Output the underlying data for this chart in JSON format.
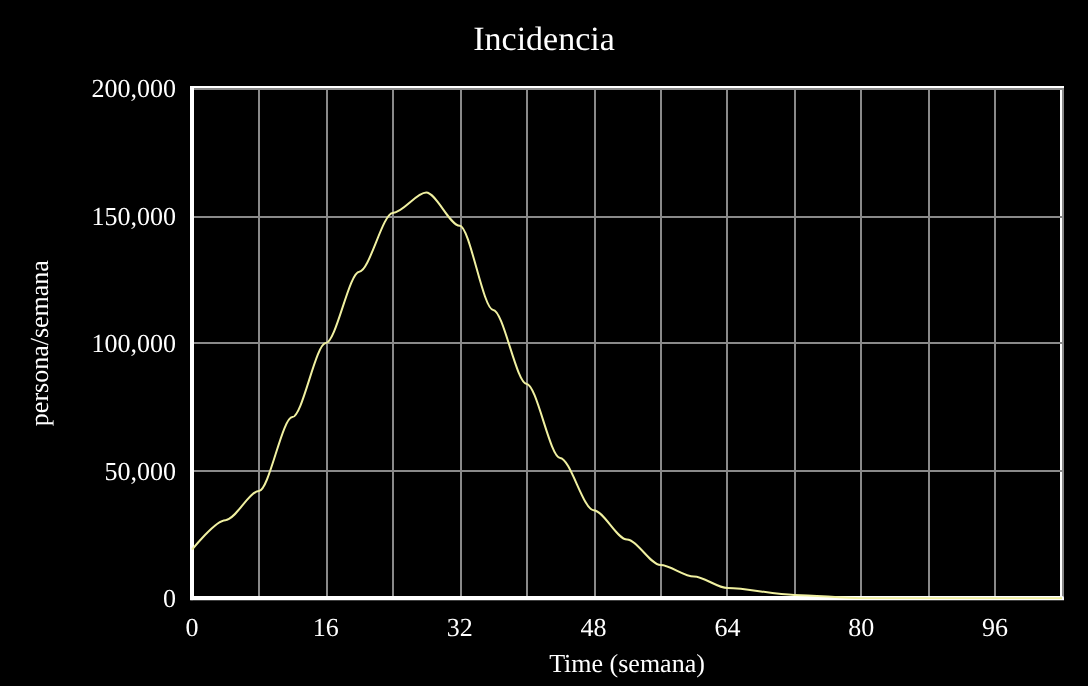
{
  "chart_data": {
    "type": "line",
    "title": "Incidencia",
    "xlabel": "Time (semana)",
    "ylabel": "persona/semana",
    "x": [
      0,
      4,
      8,
      12,
      16,
      20,
      24,
      28,
      32,
      36,
      40,
      44,
      48,
      52,
      56,
      60,
      64,
      72,
      80,
      88,
      96,
      104
    ],
    "series": [
      {
        "color": "#f0f0a0",
        "values": [
          19000,
          30600,
          42000,
          71000,
          100000,
          128000,
          151000,
          159000,
          146000,
          113000,
          84000,
          55000,
          34500,
          23000,
          13000,
          8500,
          4000,
          1300,
          0,
          0,
          0,
          0
        ]
      }
    ],
    "xlim": [
      0,
      104
    ],
    "xticks": [
      0,
      {
        "value": 8,
        "label": null
      },
      16,
      {
        "value": 24,
        "label": null
      },
      32,
      {
        "value": 40,
        "label": null
      },
      48,
      {
        "value": 56,
        "label": null
      },
      64,
      {
        "value": 72,
        "label": null
      },
      80,
      {
        "value": 88,
        "label": null
      },
      96,
      {
        "value": 104,
        "label": null
      }
    ],
    "ylim": [
      0,
      200000
    ],
    "yticks": [
      {
        "value": 0,
        "label": "0"
      },
      {
        "value": 50000,
        "label": "50,000"
      },
      {
        "value": 100000,
        "label": "100,000"
      },
      {
        "value": 150000,
        "label": "150,000"
      },
      {
        "value": 200000,
        "label": "200,000"
      }
    ],
    "grid": true,
    "marker": "none",
    "line_style": "solid"
  }
}
